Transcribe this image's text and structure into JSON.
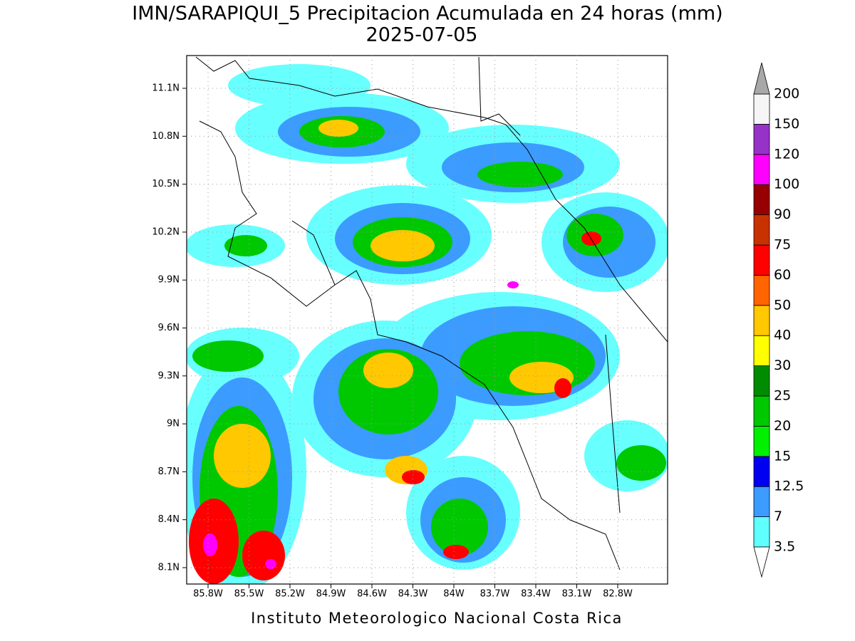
{
  "title": "IMN/SARAPIQUI_5 Precipitacion Acumulada en 24 horas (mm)",
  "subtitle": "2025-07-05",
  "map": {
    "lat_labels": [
      "11.1N",
      "10.8N",
      "10.5N",
      "10.2N",
      "9.9N",
      "9.6N",
      "9.3N",
      "9N",
      "8.7N",
      "8.4N",
      "8.1N"
    ],
    "lon_labels": [
      "85.8W",
      "85.5W",
      "85.2W",
      "84.9W",
      "84.6W",
      "84.3W",
      "84W",
      "83.7W",
      "83.4W",
      "83.1W",
      "82.8W"
    ]
  },
  "colorbar": {
    "levels": [
      3.5,
      7,
      12.5,
      15,
      20,
      25,
      30,
      40,
      50,
      60,
      75,
      90,
      100,
      120,
      150,
      200
    ],
    "colors": [
      "#60ffff",
      "#3c9bff",
      "#0000f0",
      "#00f000",
      "#00c800",
      "#008c00",
      "#ffff00",
      "#ffc800",
      "#ff6400",
      "#ff0000",
      "#c83200",
      "#960000",
      "#ff00ff",
      "#9632c8",
      "#f5f5f5"
    ],
    "under_color": "#ffffff",
    "over_color": "#a8a8a8"
  },
  "credit": "Instituto Meteorologico Nacional Costa Rica"
}
